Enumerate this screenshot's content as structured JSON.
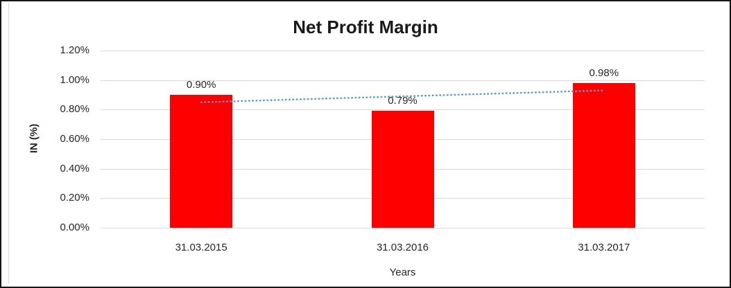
{
  "chart_data": {
    "type": "bar",
    "title": "Net Profit Margin",
    "categories": [
      "31.03.2015",
      "31.03.2016",
      "31.03.2017"
    ],
    "values": [
      0.9,
      0.79,
      0.98
    ],
    "bar_labels": [
      "0.90%",
      "0.79%",
      "0.98%"
    ],
    "xlabel": "Years",
    "ylabel": "IN (%)",
    "ylim": [
      0,
      1.2
    ],
    "ytick_step": 0.2,
    "ytick_labels": [
      "0.00%",
      "0.20%",
      "0.40%",
      "0.60%",
      "0.80%",
      "1.00%",
      "1.20%"
    ],
    "grid": true,
    "legend": "none",
    "colors": {
      "bar": "#ff0000",
      "gridline": "#d9d9d9",
      "trendline": "#5b9bd5",
      "text": "#262626"
    },
    "trendline": {
      "type": "linear",
      "style": "dotted",
      "start_value": 0.85,
      "end_value": 0.93
    }
  }
}
